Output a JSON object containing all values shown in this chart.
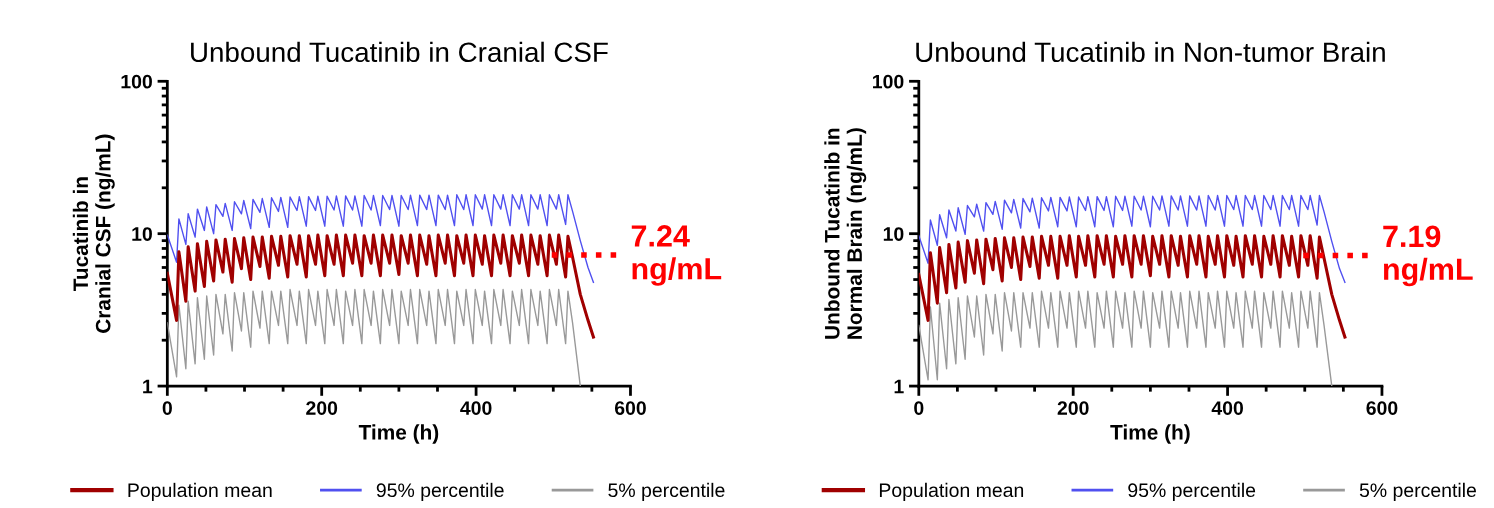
{
  "chart_data": [
    {
      "type": "line",
      "title": "Unbound Tucatinib in Cranial CSF",
      "xlabel": "Time (h)",
      "ylabel": "Tucatinib in\nCranial CSF (ng/mL)",
      "log": "y",
      "xlim": [
        0,
        600
      ],
      "xticks": [
        0,
        200,
        400,
        600
      ],
      "ylim": [
        1,
        100
      ],
      "yticks": [
        1,
        10,
        100
      ],
      "grid": false,
      "legend": "bottom",
      "marker": "none",
      "line_style": "solid",
      "x": [
        0,
        12,
        15,
        24,
        27,
        36,
        39,
        48,
        51,
        60,
        63,
        72,
        75,
        84,
        87,
        96,
        99,
        108,
        111,
        120,
        123,
        132,
        135,
        144,
        147,
        156,
        159,
        168,
        171,
        180,
        183,
        192,
        195,
        204,
        207,
        216,
        219,
        228,
        231,
        240,
        243,
        252,
        255,
        264,
        267,
        276,
        279,
        288,
        291,
        300,
        303,
        312,
        315,
        324,
        327,
        336,
        339,
        348,
        351,
        360,
        363,
        372,
        375,
        384,
        387,
        396,
        399,
        408,
        411,
        420,
        423,
        432,
        435,
        444,
        447,
        456,
        459,
        468,
        471,
        480,
        483,
        492,
        495,
        504,
        507,
        516,
        519,
        525,
        535,
        545,
        552
      ],
      "series": [
        {
          "name": "Population mean",
          "color": "#a00000",
          "values": [
            5.5,
            2.7,
            7.6,
            3.6,
            8.2,
            4.2,
            8.6,
            4.5,
            8.9,
            4.9,
            9.1,
            5.6,
            9.2,
            4.8,
            9.3,
            5.9,
            9.4,
            5.0,
            9.5,
            6.1,
            9.5,
            5.1,
            9.6,
            6.2,
            9.6,
            5.2,
            9.7,
            6.3,
            9.7,
            5.2,
            9.7,
            6.3,
            9.8,
            5.3,
            9.7,
            6.3,
            9.8,
            5.3,
            9.8,
            6.4,
            9.8,
            5.3,
            9.7,
            6.4,
            9.8,
            5.3,
            9.8,
            6.4,
            9.8,
            5.4,
            9.7,
            6.4,
            9.8,
            5.3,
            9.8,
            6.3,
            9.7,
            5.3,
            9.8,
            6.4,
            9.8,
            5.3,
            9.7,
            6.4,
            9.8,
            5.3,
            9.8,
            6.3,
            9.7,
            5.3,
            9.8,
            6.4,
            9.8,
            5.3,
            9.7,
            6.4,
            9.8,
            5.3,
            9.8,
            6.3,
            9.7,
            5.3,
            9.8,
            6.3,
            9.8,
            5.2,
            9.6,
            7.0,
            4.0,
            2.7,
            2.1
          ]
        },
        {
          "name": "95% percentile",
          "color": "#5050f0",
          "values": [
            9.8,
            6.5,
            12.5,
            8.5,
            13.5,
            9.5,
            14.5,
            10.5,
            15.0,
            10.0,
            15.5,
            13.0,
            15.8,
            10.5,
            16.2,
            13.5,
            16.5,
            10.8,
            16.8,
            13.8,
            17.0,
            11.0,
            17.2,
            14.0,
            17.3,
            11.0,
            17.4,
            14.2,
            17.5,
            11.2,
            17.5,
            14.2,
            17.6,
            11.2,
            17.6,
            14.3,
            17.7,
            11.2,
            17.7,
            14.3,
            17.7,
            11.2,
            17.8,
            14.3,
            17.8,
            11.3,
            17.8,
            14.4,
            17.8,
            11.2,
            17.8,
            14.4,
            17.9,
            11.3,
            17.9,
            14.4,
            17.9,
            11.3,
            17.9,
            14.4,
            17.9,
            11.3,
            18.0,
            14.4,
            18.0,
            11.3,
            18.0,
            14.5,
            18.0,
            11.3,
            18.0,
            14.5,
            18.0,
            11.3,
            18.0,
            14.5,
            18.0,
            11.3,
            18.0,
            14.5,
            18.0,
            11.3,
            18.0,
            14.5,
            18.0,
            11.5,
            18.0,
            14.0,
            9.0,
            6.0,
            4.8
          ]
        },
        {
          "name": "5% percentile",
          "color": "#999999",
          "values": [
            2.6,
            1.15,
            3.4,
            1.3,
            3.6,
            1.4,
            3.8,
            1.5,
            3.9,
            1.6,
            4.0,
            2.2,
            4.0,
            1.7,
            4.1,
            2.3,
            4.1,
            1.8,
            4.2,
            2.4,
            4.2,
            1.9,
            4.2,
            2.5,
            4.2,
            1.9,
            4.3,
            2.5,
            4.2,
            1.9,
            4.3,
            2.5,
            4.2,
            1.9,
            4.3,
            2.5,
            4.3,
            1.9,
            4.2,
            2.5,
            4.3,
            1.9,
            4.3,
            2.5,
            4.2,
            1.9,
            4.3,
            2.5,
            4.3,
            1.9,
            4.2,
            2.5,
            4.3,
            1.9,
            4.3,
            2.5,
            4.2,
            1.9,
            4.3,
            2.5,
            4.3,
            1.9,
            4.2,
            2.5,
            4.3,
            1.9,
            4.3,
            2.5,
            4.2,
            1.9,
            4.3,
            2.5,
            4.3,
            1.9,
            4.2,
            2.5,
            4.3,
            1.9,
            4.3,
            2.5,
            4.2,
            1.9,
            4.3,
            2.5,
            4.3,
            1.9,
            4.2,
            2.6,
            1.0,
            null,
            null
          ]
        }
      ],
      "ref_lines": [
        {
          "axis": "y",
          "value": 7.24,
          "label": "7.24\nng/mL",
          "color": "#ff0000",
          "line_style": "dotted"
        }
      ]
    },
    {
      "type": "line",
      "title": "Unbound Tucatinib in Non-tumor Brain",
      "xlabel": "Time (h)",
      "ylabel": "Unbound Tucatinib in\nNormal Brain (ng/mL)",
      "log": "y",
      "xlim": [
        0,
        600
      ],
      "xticks": [
        0,
        200,
        400,
        600
      ],
      "ylim": [
        1,
        100
      ],
      "yticks": [
        1,
        10,
        100
      ],
      "grid": false,
      "legend": "bottom",
      "marker": "none",
      "line_style": "solid",
      "x": [
        0,
        12,
        15,
        24,
        27,
        36,
        39,
        48,
        51,
        60,
        63,
        72,
        75,
        84,
        87,
        96,
        99,
        108,
        111,
        120,
        123,
        132,
        135,
        144,
        147,
        156,
        159,
        168,
        171,
        180,
        183,
        192,
        195,
        204,
        207,
        216,
        219,
        228,
        231,
        240,
        243,
        252,
        255,
        264,
        267,
        276,
        279,
        288,
        291,
        300,
        303,
        312,
        315,
        324,
        327,
        336,
        339,
        348,
        351,
        360,
        363,
        372,
        375,
        384,
        387,
        396,
        399,
        408,
        411,
        420,
        423,
        432,
        435,
        444,
        447,
        456,
        459,
        468,
        471,
        480,
        483,
        492,
        495,
        504,
        507,
        516,
        519,
        525,
        535,
        545,
        552
      ],
      "series": [
        {
          "name": "Population mean",
          "color": "#a00000",
          "values": [
            5.4,
            2.7,
            7.5,
            3.5,
            8.1,
            4.1,
            8.5,
            4.4,
            8.8,
            4.8,
            9.0,
            5.5,
            9.1,
            4.7,
            9.2,
            5.8,
            9.3,
            4.9,
            9.4,
            6.0,
            9.4,
            5.0,
            9.5,
            6.1,
            9.5,
            5.1,
            9.6,
            6.2,
            9.6,
            5.1,
            9.6,
            6.2,
            9.7,
            5.2,
            9.6,
            6.2,
            9.7,
            5.2,
            9.7,
            6.3,
            9.7,
            5.2,
            9.6,
            6.3,
            9.7,
            5.2,
            9.7,
            6.3,
            9.7,
            5.3,
            9.6,
            6.3,
            9.7,
            5.2,
            9.7,
            6.2,
            9.6,
            5.2,
            9.7,
            6.3,
            9.7,
            5.2,
            9.6,
            6.3,
            9.7,
            5.2,
            9.7,
            6.2,
            9.6,
            5.2,
            9.7,
            6.3,
            9.7,
            5.2,
            9.6,
            6.3,
            9.7,
            5.2,
            9.7,
            6.2,
            9.6,
            5.2,
            9.7,
            6.2,
            9.7,
            5.1,
            9.5,
            6.9,
            4.0,
            2.7,
            2.1
          ]
        },
        {
          "name": "95% percentile",
          "color": "#5050f0",
          "values": [
            9.7,
            6.4,
            12.3,
            8.4,
            13.3,
            9.4,
            14.3,
            10.4,
            14.8,
            9.9,
            15.3,
            12.9,
            15.6,
            10.4,
            16.0,
            13.4,
            16.3,
            10.7,
            16.6,
            13.7,
            16.8,
            10.9,
            17.0,
            13.9,
            17.1,
            10.9,
            17.2,
            14.1,
            17.3,
            11.1,
            17.3,
            14.1,
            17.4,
            11.1,
            17.4,
            14.2,
            17.5,
            11.1,
            17.5,
            14.2,
            17.5,
            11.1,
            17.6,
            14.2,
            17.6,
            11.2,
            17.6,
            14.3,
            17.6,
            11.1,
            17.6,
            14.3,
            17.7,
            11.2,
            17.7,
            14.3,
            17.7,
            11.2,
            17.7,
            14.3,
            17.7,
            11.2,
            17.8,
            14.3,
            17.8,
            11.2,
            17.8,
            14.4,
            17.8,
            11.2,
            17.8,
            14.4,
            17.8,
            11.2,
            17.8,
            14.4,
            17.8,
            11.2,
            17.8,
            14.4,
            17.8,
            11.2,
            17.8,
            14.4,
            17.8,
            11.4,
            17.8,
            13.9,
            8.9,
            5.9,
            4.8
          ]
        },
        {
          "name": "5% percentile",
          "color": "#999999",
          "values": [
            2.5,
            1.1,
            3.3,
            1.1,
            3.5,
            1.3,
            3.7,
            1.4,
            3.8,
            1.5,
            3.9,
            2.1,
            3.9,
            1.6,
            4.0,
            2.2,
            4.0,
            1.7,
            4.1,
            2.3,
            4.1,
            1.8,
            4.1,
            2.4,
            4.1,
            1.8,
            4.2,
            2.4,
            4.1,
            1.8,
            4.2,
            2.4,
            4.1,
            1.8,
            4.2,
            2.4,
            4.2,
            1.8,
            4.1,
            2.4,
            4.2,
            1.8,
            4.2,
            2.4,
            4.1,
            1.8,
            4.2,
            2.4,
            4.2,
            1.8,
            4.1,
            2.4,
            4.2,
            1.8,
            4.2,
            2.4,
            4.1,
            1.8,
            4.2,
            2.4,
            4.2,
            1.8,
            4.1,
            2.4,
            4.2,
            1.8,
            4.2,
            2.4,
            4.1,
            1.8,
            4.2,
            2.4,
            4.2,
            1.8,
            4.1,
            2.4,
            4.2,
            1.8,
            4.2,
            2.4,
            4.1,
            1.8,
            4.2,
            2.4,
            4.2,
            1.8,
            4.1,
            2.5,
            1.0,
            null,
            null
          ]
        }
      ],
      "ref_lines": [
        {
          "axis": "y",
          "value": 7.19,
          "label": "7.19\nng/mL",
          "color": "#ff0000",
          "line_style": "dotted"
        }
      ]
    }
  ]
}
